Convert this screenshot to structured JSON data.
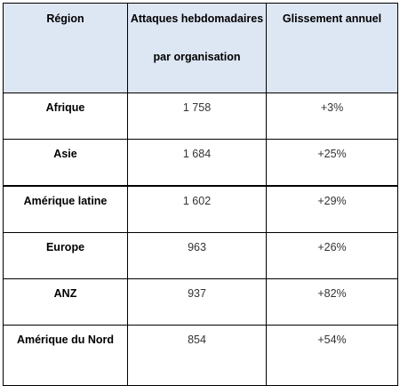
{
  "table": {
    "headers": {
      "region": "Région",
      "attacks_line1": "Attaques hebdomadaires",
      "attacks_line2": "par organisation",
      "growth": "Glissement annuel"
    },
    "rows": [
      {
        "region": "Afrique",
        "attacks": "1 758",
        "growth": "+3%"
      },
      {
        "region": "Asie",
        "attacks": "1 684",
        "growth": "+25%"
      },
      {
        "region": "Amérique latine",
        "attacks": "1 602",
        "growth": "+29%"
      },
      {
        "region": "Europe",
        "attacks": "963",
        "growth": "+26%"
      },
      {
        "region": "ANZ",
        "attacks": "937",
        "growth": "+82%"
      },
      {
        "region": "Amérique du Nord",
        "attacks": "854",
        "growth": "+54%"
      }
    ]
  },
  "colors": {
    "header_background": "#dde6f3",
    "border": "#000000"
  }
}
